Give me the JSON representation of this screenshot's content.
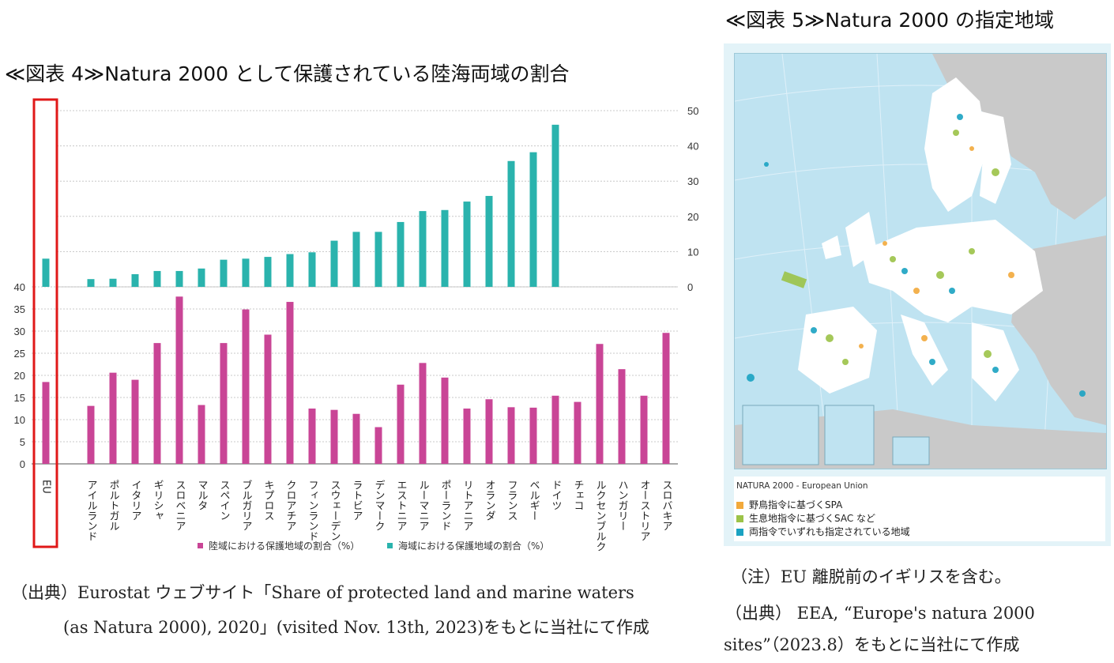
{
  "figure4": {
    "title": "≪図表 4≫Natura 2000 として保護されている陸海両域の割合",
    "source_line1": "（出典）Eurostat ウェブサイト「Share of protected land and marine waters",
    "source_line2": "(as Natura 2000), 2020」(visited Nov. 13th, 2023)をもとに当社にて作成"
  },
  "figure5": {
    "title": "≪図表 5≫Natura 2000 の指定地域",
    "map_title": "NATURA 2000 - European Union",
    "legend": [
      {
        "label": "野鳥指令に基づくSPA",
        "color": "#f2a93b"
      },
      {
        "label": "生息地指令に基づくSAC など",
        "color": "#9cc348"
      },
      {
        "label": "両指令でいずれも指定されている地域",
        "color": "#1aa2c2"
      }
    ],
    "note": "（注）EU 離脱前のイギリスを含む。",
    "source_line1": "（出典） EEA, “Europe's natura 2000",
    "source_line2": "sites”（2023.8）をもとに当社にて作成"
  },
  "chart_data": {
    "type": "bar",
    "categories": [
      "EU",
      "アイルランド",
      "ポルトガル",
      "イタリア",
      "ギリシャ",
      "スロベニア",
      "マルタ",
      "スペイン",
      "ブルガリア",
      "キプロス",
      "クロアチア",
      "フィンランド",
      "スウェーデン",
      "ラトビア",
      "デンマーク",
      "エストニア",
      "ルーマニア",
      "ポーランド",
      "リトアニア",
      "オランダ",
      "フランス",
      "ベルギー",
      "ドイツ",
      "チェコ",
      "ルクセンブルク",
      "ハンガリー",
      "オーストリア",
      "スロバキア"
    ],
    "series": [
      {
        "name": "陸域における保護地域の割合（%）",
        "color": "#c94596",
        "values": [
          18.5,
          13.1,
          20.6,
          19.0,
          27.3,
          37.8,
          13.3,
          27.3,
          34.9,
          29.2,
          36.6,
          12.5,
          12.2,
          11.3,
          8.3,
          17.9,
          22.8,
          19.5,
          12.5,
          14.6,
          12.8,
          12.7,
          15.4,
          14.0,
          27.1,
          21.4,
          15.4,
          29.6
        ]
      },
      {
        "name": "海域における保護地域の割合（%）",
        "color": "#2ab3ad",
        "values": [
          8.0,
          2.2,
          2.3,
          3.6,
          4.5,
          4.5,
          5.2,
          7.7,
          8.0,
          8.5,
          9.3,
          9.8,
          13.1,
          15.6,
          15.6,
          18.4,
          21.5,
          21.8,
          24.2,
          25.8,
          35.7,
          38.2,
          46.0,
          null,
          null,
          null,
          null,
          null
        ]
      }
    ],
    "upper_axis": {
      "side": "right",
      "ylim": [
        0,
        50
      ],
      "ticks": [
        0,
        10,
        20,
        30,
        40,
        50
      ]
    },
    "lower_axis": {
      "side": "left",
      "ylim": [
        0,
        40
      ],
      "ticks": [
        0,
        5,
        10,
        15,
        20,
        25,
        30,
        35,
        40
      ]
    },
    "highlight": "EU",
    "legend_position": "bottom"
  }
}
